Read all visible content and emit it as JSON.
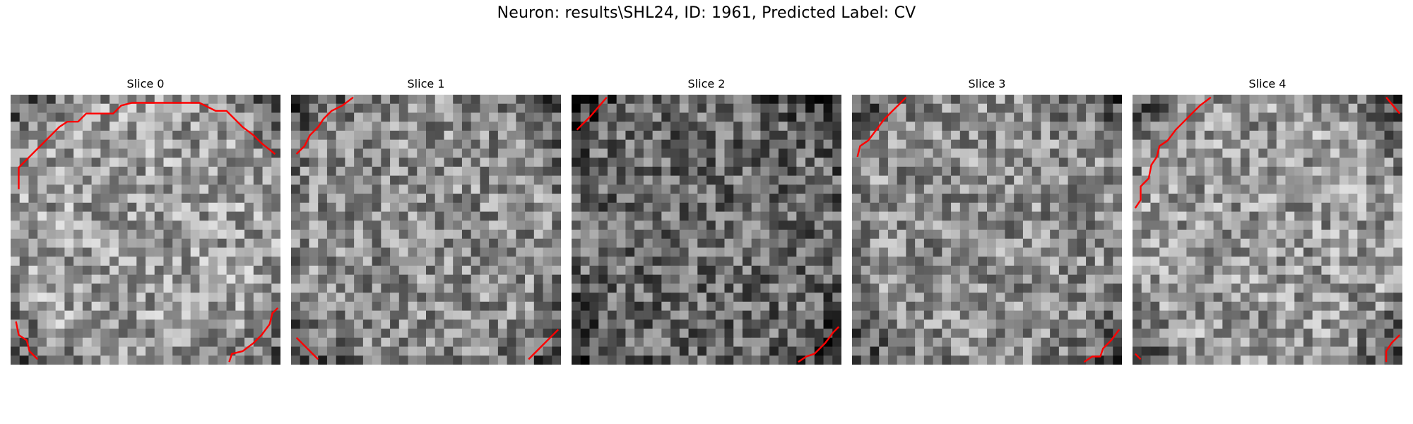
{
  "figure": {
    "suptitle": "Neuron: results\\SHL24, ID: 1961, Predicted Label: CV",
    "contour_color": "#ff0000",
    "colormap": "gray",
    "slices": [
      {
        "title": "Slice 0",
        "mean_level": 0.62,
        "contours": [
          [
            [
              0.03,
              0.35
            ],
            [
              0.03,
              0.27
            ],
            [
              0.06,
              0.24
            ],
            [
              0.09,
              0.21
            ],
            [
              0.12,
              0.18
            ],
            [
              0.15,
              0.15
            ],
            [
              0.18,
              0.12
            ],
            [
              0.21,
              0.1
            ],
            [
              0.25,
              0.1
            ],
            [
              0.28,
              0.07
            ],
            [
              0.38,
              0.07
            ],
            [
              0.41,
              0.04
            ],
            [
              0.45,
              0.03
            ],
            [
              0.7,
              0.03
            ],
            [
              0.76,
              0.06
            ],
            [
              0.8,
              0.06
            ],
            [
              0.83,
              0.09
            ],
            [
              0.86,
              0.12
            ],
            [
              0.9,
              0.15
            ],
            [
              0.93,
              0.18
            ],
            [
              0.98,
              0.22
            ]
          ],
          [
            [
              0.02,
              0.84
            ],
            [
              0.03,
              0.89
            ],
            [
              0.06,
              0.91
            ],
            [
              0.07,
              0.95
            ],
            [
              0.1,
              0.98
            ]
          ],
          [
            [
              0.81,
              0.99
            ],
            [
              0.82,
              0.96
            ],
            [
              0.86,
              0.95
            ],
            [
              0.9,
              0.92
            ],
            [
              0.93,
              0.89
            ],
            [
              0.96,
              0.85
            ],
            [
              0.97,
              0.81
            ],
            [
              0.99,
              0.79
            ]
          ]
        ]
      },
      {
        "title": "Slice 1",
        "mean_level": 0.55,
        "contours": [
          [
            [
              0.02,
              0.22
            ],
            [
              0.05,
              0.19
            ],
            [
              0.07,
              0.15
            ],
            [
              0.1,
              0.12
            ],
            [
              0.12,
              0.09
            ],
            [
              0.15,
              0.06
            ],
            [
              0.19,
              0.04
            ],
            [
              0.23,
              0.01
            ]
          ],
          [
            [
              0.02,
              0.9
            ],
            [
              0.1,
              0.98
            ]
          ],
          [
            [
              0.88,
              0.98
            ],
            [
              0.92,
              0.94
            ],
            [
              0.96,
              0.9
            ],
            [
              0.99,
              0.87
            ]
          ]
        ]
      },
      {
        "title": "Slice 2",
        "mean_level": 0.42,
        "contours": [
          [
            [
              0.02,
              0.13
            ],
            [
              0.07,
              0.08
            ],
            [
              0.13,
              0.01
            ]
          ],
          [
            [
              0.84,
              0.99
            ],
            [
              0.87,
              0.97
            ],
            [
              0.9,
              0.96
            ],
            [
              0.94,
              0.92
            ],
            [
              0.97,
              0.88
            ],
            [
              0.99,
              0.86
            ]
          ]
        ]
      },
      {
        "title": "Slice 3",
        "mean_level": 0.56,
        "contours": [
          [
            [
              0.02,
              0.23
            ],
            [
              0.03,
              0.19
            ],
            [
              0.06,
              0.17
            ],
            [
              0.09,
              0.13
            ],
            [
              0.12,
              0.09
            ],
            [
              0.15,
              0.06
            ],
            [
              0.18,
              0.03
            ],
            [
              0.2,
              0.01
            ]
          ],
          [
            [
              0.86,
              0.99
            ],
            [
              0.89,
              0.97
            ],
            [
              0.92,
              0.97
            ],
            [
              0.93,
              0.94
            ],
            [
              0.96,
              0.91
            ],
            [
              0.99,
              0.87
            ]
          ]
        ]
      },
      {
        "title": "Slice 4",
        "mean_level": 0.6,
        "contours": [
          [
            [
              0.01,
              0.42
            ],
            [
              0.03,
              0.39
            ],
            [
              0.03,
              0.34
            ],
            [
              0.06,
              0.31
            ],
            [
              0.07,
              0.26
            ],
            [
              0.09,
              0.23
            ],
            [
              0.1,
              0.19
            ],
            [
              0.13,
              0.17
            ],
            [
              0.16,
              0.13
            ],
            [
              0.19,
              0.1
            ],
            [
              0.22,
              0.07
            ],
            [
              0.25,
              0.04
            ],
            [
              0.29,
              0.01
            ]
          ],
          [
            [
              0.94,
              0.01
            ],
            [
              0.99,
              0.07
            ]
          ],
          [
            [
              0.94,
              0.99
            ],
            [
              0.94,
              0.95
            ],
            [
              0.96,
              0.92
            ],
            [
              0.99,
              0.89
            ]
          ],
          [
            [
              0.01,
              0.96
            ],
            [
              0.03,
              0.98
            ]
          ]
        ]
      }
    ]
  }
}
